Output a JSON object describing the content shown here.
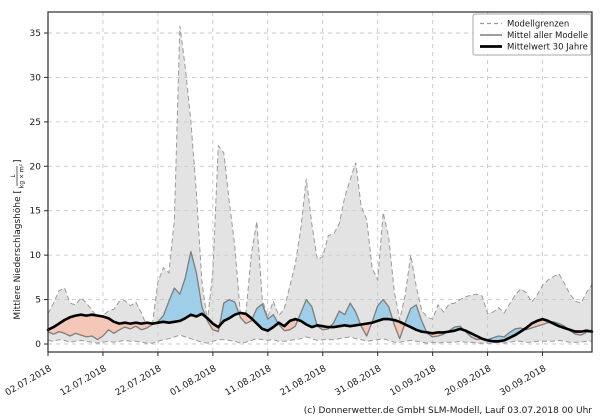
{
  "meta": {
    "caption": "(c) Donnerwetter.de GmbH SLM-Modell, Lauf 03.07.2018 00 Uhr"
  },
  "chart_data": {
    "type": "area",
    "title": "",
    "ylabel": "Mittlere Niederschlagshöhe",
    "unit_bracket_open": "[",
    "unit_bracket_close": "]",
    "unit_numerator": "L",
    "unit_denominator": "kg × m²",
    "grid": true,
    "ylim": [
      -0.9,
      38.3
    ],
    "yticks": [
      0,
      5,
      10,
      15,
      20,
      25,
      30,
      35
    ],
    "xtick_labels": [
      "02.07.2018",
      "12.07.2018",
      "22.07.2018",
      "01.08.2018",
      "11.08.2018",
      "21.08.2018",
      "31.08.2018",
      "10.09.2018",
      "20.09.2018",
      "30.09.2018"
    ],
    "xtick_days": [
      0,
      10,
      20,
      30,
      40,
      50,
      60,
      70,
      80,
      90
    ],
    "x_days_total": 99,
    "legend": {
      "position": "top-right",
      "entries": [
        {
          "label": "Modellgrenzen",
          "style": "dashed-gray"
        },
        {
          "label": "Mittel aller Modelle",
          "style": "solid-gray"
        },
        {
          "label": "Mittelwert 30 Jahre",
          "style": "thick-black"
        }
      ]
    },
    "colors": {
      "band_fill": "#e3e3e3",
      "band_edge": "#9a9a9a",
      "mean_line": "#7d7d7d",
      "mean30_line": "#000000",
      "above_fill": "#9fcfe8",
      "below_fill": "#f5c7b8",
      "grid": "#c9c9c9",
      "spine": "#2b2b2b",
      "text": "#1a1a1a"
    },
    "series": [
      {
        "name": "Modellgrenzen oben",
        "values": [
          3.4,
          4.6,
          6.0,
          6.3,
          4.6,
          4.4,
          5.2,
          4.6,
          3.8,
          3.0,
          3.2,
          3.7,
          3.9,
          4.8,
          4.9,
          4.3,
          4.7,
          3.5,
          2.0,
          2.2,
          7.0,
          8.6,
          8.0,
          14.0,
          35.8,
          31.0,
          25.0,
          17.0,
          7.0,
          2.6,
          8.0,
          22.3,
          21.5,
          16.0,
          11.0,
          3.5,
          3.4,
          10.0,
          13.8,
          5.0,
          3.0,
          4.8,
          3.2,
          4.0,
          6.5,
          9.0,
          13.0,
          18.6,
          13.5,
          9.5,
          9.8,
          12.2,
          12.4,
          13.5,
          16.5,
          18.5,
          20.4,
          15.5,
          14.0,
          8.5,
          7.2,
          14.8,
          12.0,
          6.0,
          2.7,
          5.5,
          10.0,
          6.5,
          3.8,
          3.0,
          2.8,
          4.4,
          3.6,
          4.5,
          4.6,
          5.0,
          5.3,
          5.5,
          5.6,
          5.4,
          3.4,
          3.6,
          4.1,
          3.5,
          4.5,
          5.5,
          6.2,
          5.8,
          4.7,
          5.5,
          6.6,
          7.2,
          7.6,
          7.9,
          6.8,
          5.6,
          4.8,
          4.6,
          5.8,
          6.7
        ]
      },
      {
        "name": "Modellgrenzen unten",
        "values": [
          0.4,
          0.3,
          0.5,
          0.4,
          0.2,
          0.3,
          0.4,
          0.3,
          0.2,
          0.1,
          0.2,
          0.3,
          0.2,
          0.3,
          0.4,
          0.3,
          0.3,
          0.2,
          0.1,
          0.1,
          0.3,
          0.5,
          0.6,
          0.8,
          1.0,
          0.8,
          0.6,
          0.4,
          0.2,
          0.1,
          0.3,
          0.5,
          0.5,
          0.4,
          0.3,
          0.1,
          0.2,
          0.4,
          0.6,
          0.5,
          0.4,
          0.5,
          0.3,
          0.3,
          0.4,
          0.5,
          0.6,
          0.8,
          0.6,
          0.4,
          0.5,
          0.5,
          0.5,
          0.6,
          0.7,
          0.8,
          0.6,
          0.5,
          0.3,
          0.4,
          0.5,
          0.6,
          0.4,
          0.2,
          0.2,
          0.3,
          0.4,
          0.3,
          0.2,
          0.1,
          0.2,
          0.1,
          0.2,
          0.2,
          0.2,
          0.3,
          0.2,
          0.2,
          0.1,
          0.1,
          0.1,
          0.1,
          0.2,
          0.1,
          0.2,
          0.3,
          0.3,
          0.2,
          0.2,
          0.3,
          0.3,
          0.3,
          0.3,
          0.4,
          0.3,
          0.2,
          0.2,
          0.2,
          0.3,
          0.3
        ]
      },
      {
        "name": "Mittel aller Modelle",
        "values": [
          1.4,
          1.1,
          1.4,
          1.2,
          0.9,
          1.2,
          1.0,
          0.8,
          0.9,
          0.5,
          0.9,
          1.6,
          1.2,
          1.6,
          1.9,
          1.7,
          2.0,
          1.6,
          1.8,
          2.2,
          2.5,
          3.2,
          4.8,
          6.3,
          5.6,
          7.5,
          10.4,
          8.0,
          4.2,
          2.6,
          1.6,
          1.4,
          4.6,
          5.0,
          4.7,
          3.0,
          2.3,
          2.6,
          4.0,
          4.5,
          2.8,
          3.3,
          2.2,
          1.5,
          1.6,
          2.0,
          3.5,
          5.0,
          4.2,
          2.0,
          1.6,
          1.7,
          2.4,
          3.7,
          3.3,
          4.6,
          3.6,
          2.0,
          0.9,
          2.5,
          4.3,
          5.0,
          4.2,
          2.2,
          0.6,
          2.4,
          4.0,
          4.4,
          2.6,
          1.2,
          0.8,
          0.9,
          1.1,
          1.5,
          1.9,
          2.0,
          1.4,
          0.8,
          0.5,
          0.6,
          0.5,
          0.7,
          0.9,
          0.8,
          1.3,
          1.7,
          1.8,
          1.6,
          1.8,
          2.0,
          2.2,
          2.4,
          2.5,
          2.3,
          2.0,
          1.5,
          1.1,
          1.0,
          1.3,
          1.6
        ]
      },
      {
        "name": "Mittelwert 30 Jahre",
        "values": [
          1.6,
          1.9,
          2.3,
          2.7,
          3.0,
          3.2,
          3.3,
          3.2,
          3.3,
          3.2,
          3.1,
          2.9,
          2.5,
          2.3,
          2.4,
          2.3,
          2.4,
          2.3,
          2.4,
          2.3,
          2.4,
          2.5,
          2.4,
          2.5,
          2.6,
          2.9,
          3.3,
          3.1,
          3.4,
          2.9,
          2.3,
          1.9,
          2.6,
          2.9,
          3.3,
          3.5,
          3.4,
          2.9,
          2.3,
          1.7,
          1.5,
          1.9,
          2.4,
          2.0,
          2.6,
          2.8,
          2.6,
          2.2,
          1.9,
          2.1,
          2.0,
          1.9,
          1.9,
          2.0,
          2.1,
          2.0,
          2.1,
          2.2,
          2.3,
          2.4,
          2.6,
          2.8,
          2.8,
          2.7,
          2.5,
          2.2,
          1.9,
          1.6,
          1.4,
          1.3,
          1.2,
          1.3,
          1.3,
          1.4,
          1.5,
          1.7,
          1.5,
          1.2,
          0.9,
          0.6,
          0.4,
          0.3,
          0.3,
          0.4,
          0.7,
          1.0,
          1.4,
          1.8,
          2.3,
          2.6,
          2.8,
          2.6,
          2.3,
          2.0,
          1.8,
          1.6,
          1.4,
          1.4,
          1.5,
          1.4
        ]
      }
    ]
  }
}
